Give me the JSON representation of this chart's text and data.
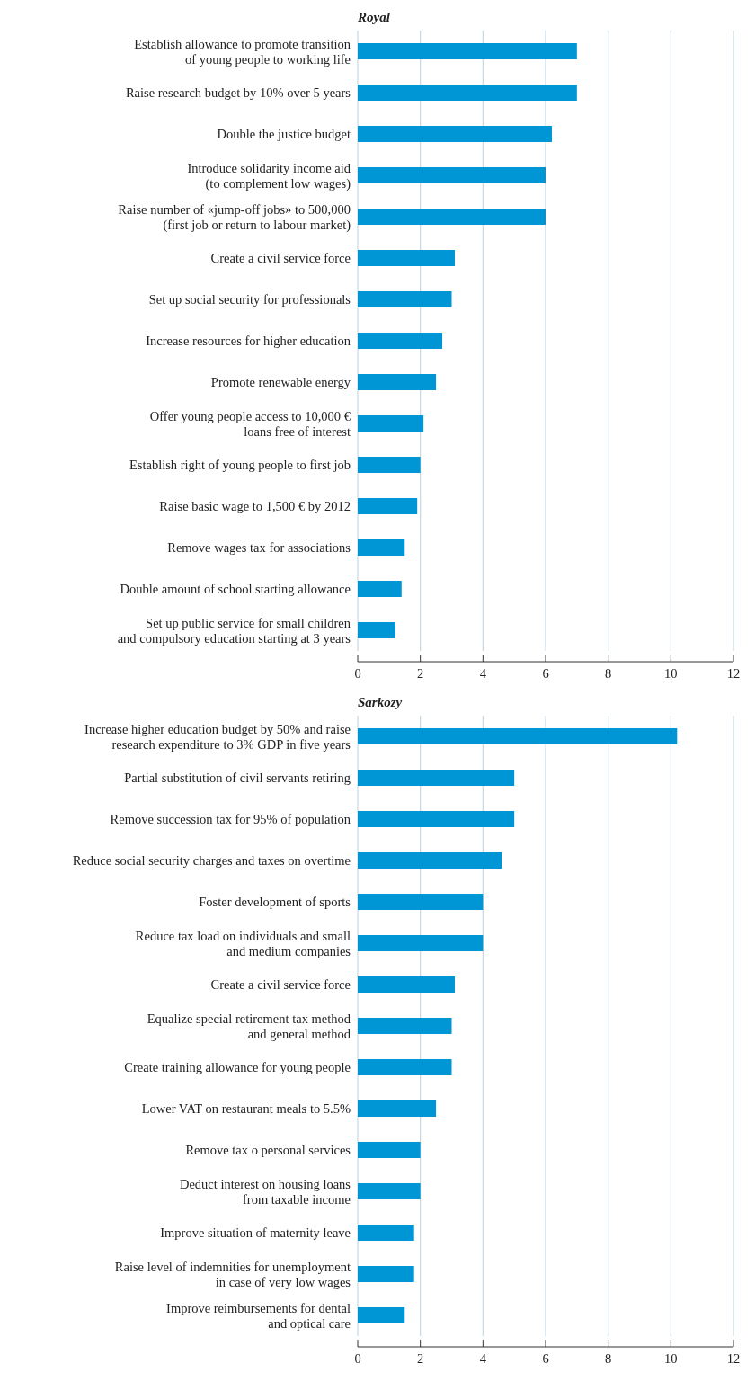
{
  "chart_data": [
    {
      "type": "bar",
      "orientation": "horizontal",
      "title": "Royal",
      "color": "#0096d6",
      "xlim": [
        0,
        12
      ],
      "xticks": [
        0,
        2,
        4,
        6,
        8,
        10,
        12
      ],
      "grid": "x",
      "categories": [
        "Establish allowance to promote transition\nof young people to working life",
        "Raise research budget by 10% over 5 years",
        "Double the justice budget",
        "Introduce solidarity income aid\n(to complement low wages)",
        "Raise number of «jump-off jobs» to 500,000\n(first job or return to labour market)",
        "Create a civil service force",
        "Set up social security for professionals",
        "Increase resources for higher education",
        "Promote renewable energy",
        "Offer young people access to 10,000 €\nloans free of interest",
        "Establish right of young people to first job",
        "Raise basic wage to 1,500 € by 2012",
        "Remove wages tax for associations",
        "Double amount of school starting allowance",
        "Set up public service for small children\nand compulsory education starting at 3 years"
      ],
      "values": [
        7.0,
        7.0,
        6.2,
        6.0,
        6.0,
        3.1,
        3.0,
        2.7,
        2.5,
        2.1,
        2.0,
        1.9,
        1.5,
        1.4,
        1.2
      ]
    },
    {
      "type": "bar",
      "orientation": "horizontal",
      "title": "Sarkozy",
      "color": "#0096d6",
      "xlim": [
        0,
        12
      ],
      "xticks": [
        0,
        2,
        4,
        6,
        8,
        10,
        12
      ],
      "grid": "x",
      "categories": [
        "Increase higher education budget by 50% and raise\nresearch expenditure to 3% GDP in five years",
        "Partial substitution of civil servants retiring",
        "Remove succession tax for 95% of population",
        "Reduce social security charges and taxes on overtime",
        "Foster development of sports",
        "Reduce tax load on individuals and small\nand medium companies",
        "Create a civil service force",
        "Equalize special retirement tax method\nand general method",
        "Create training allowance for young people",
        "Lower VAT on restaurant meals to 5.5%",
        "Remove tax o personal services",
        "Deduct interest on housing loans\nfrom taxable income",
        "Improve situation of maternity leave",
        "Raise level of indemnities for unemployment\nin case of very low wages",
        "Improve reimbursements for dental\nand optical care"
      ],
      "values": [
        10.2,
        5.0,
        5.0,
        4.6,
        4.0,
        4.0,
        3.1,
        3.0,
        3.0,
        2.5,
        2.0,
        2.0,
        1.8,
        1.8,
        1.5
      ]
    }
  ]
}
